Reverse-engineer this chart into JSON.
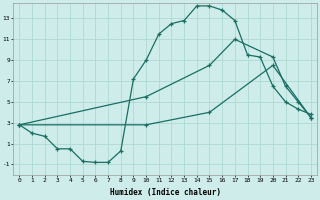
{
  "xlabel": "Humidex (Indice chaleur)",
  "background_color": "#ceecea",
  "grid_color": "#aed8d4",
  "line_color": "#1a6e64",
  "xlim": [
    -0.5,
    23.5
  ],
  "ylim": [
    -2.0,
    14.5
  ],
  "xticks": [
    0,
    1,
    2,
    3,
    4,
    5,
    6,
    7,
    8,
    9,
    10,
    11,
    12,
    13,
    14,
    15,
    16,
    17,
    18,
    19,
    20,
    21,
    22,
    23
  ],
  "yticks": [
    -1,
    1,
    3,
    5,
    7,
    9,
    11,
    13
  ],
  "line1_x": [
    0,
    1,
    2,
    3,
    4,
    5,
    6,
    7,
    8,
    9,
    10,
    11,
    12,
    13,
    14,
    15,
    16,
    17,
    18,
    19,
    20,
    21,
    22,
    23
  ],
  "line1_y": [
    2.8,
    2.0,
    1.7,
    0.5,
    0.5,
    -0.7,
    -0.8,
    -0.8,
    0.3,
    7.2,
    9.0,
    11.5,
    12.5,
    12.8,
    14.2,
    14.2,
    13.8,
    12.8,
    9.5,
    9.3,
    6.5,
    5.0,
    4.3,
    3.8
  ],
  "line2_x": [
    0,
    10,
    15,
    17,
    20,
    21,
    22,
    23
  ],
  "line2_y": [
    2.8,
    5.5,
    8.5,
    11.0,
    9.3,
    6.5,
    5.0,
    3.5
  ],
  "line3_x": [
    0,
    10,
    15,
    20,
    23
  ],
  "line3_y": [
    2.8,
    2.8,
    4.0,
    8.5,
    3.5
  ]
}
